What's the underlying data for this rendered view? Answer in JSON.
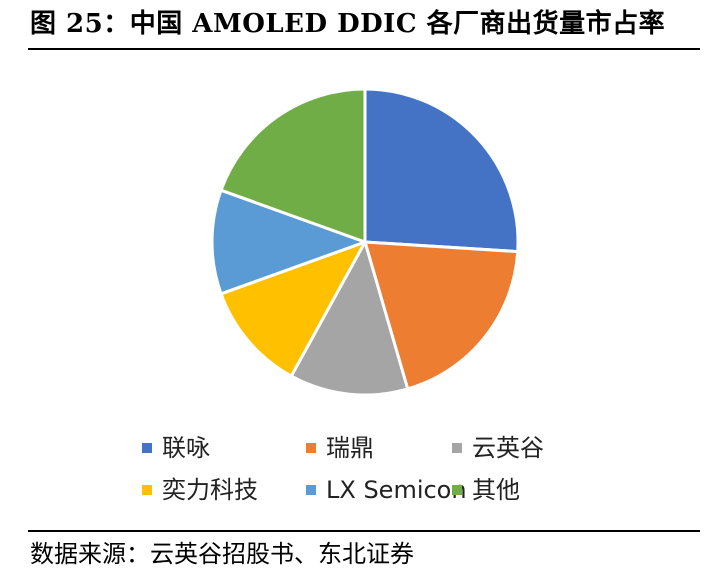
{
  "figure": {
    "title": "图 25：中国 AMOLED DDIC 各厂商出货量市占率",
    "source": "数据来源：云英谷招股书、东北证券"
  },
  "chart_data": {
    "type": "pie",
    "start_angle_deg": 0,
    "direction": "clockwise",
    "slice_border_color": "#ffffff",
    "legend_placement": "bottom",
    "slices": [
      {
        "label": "联咏",
        "value": 26.0,
        "color": "#4472C4"
      },
      {
        "label": "瑞鼎",
        "value": 19.5,
        "color": "#ED7D31"
      },
      {
        "label": "云英谷",
        "value": 12.5,
        "color": "#A5A5A5"
      },
      {
        "label": "奕力科技",
        "value": 11.5,
        "color": "#FFC000"
      },
      {
        "label": "LX Semicon",
        "value": 11.0,
        "color": "#5B9BD5"
      },
      {
        "label": "其他",
        "value": 19.5,
        "color": "#70AD47"
      }
    ]
  }
}
